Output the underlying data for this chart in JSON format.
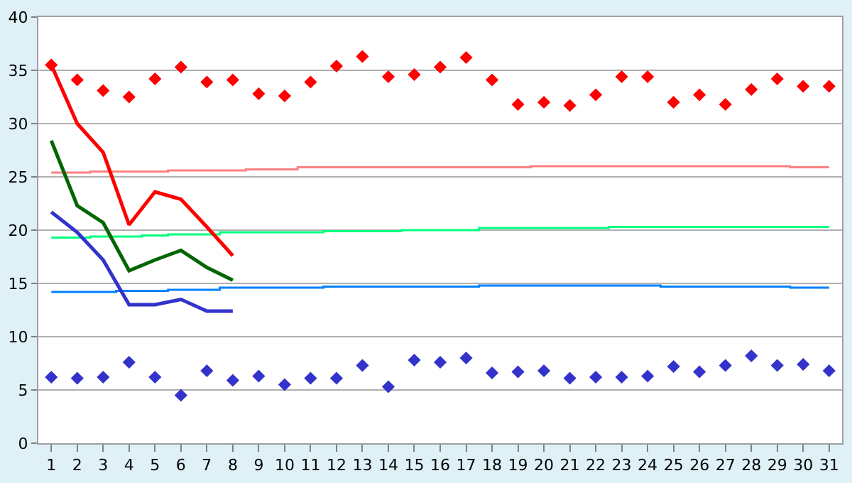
{
  "chart_data": {
    "type": "line",
    "x": [
      1,
      2,
      3,
      4,
      5,
      6,
      7,
      8,
      9,
      10,
      11,
      12,
      13,
      14,
      15,
      16,
      17,
      18,
      19,
      20,
      21,
      22,
      23,
      24,
      25,
      26,
      27,
      28,
      29,
      30,
      31
    ],
    "xlim": [
      0.5,
      31.5
    ],
    "xticks": [
      1,
      2,
      3,
      4,
      5,
      6,
      7,
      8,
      9,
      10,
      11,
      12,
      13,
      14,
      15,
      16,
      17,
      18,
      19,
      20,
      21,
      22,
      23,
      24,
      25,
      26,
      27,
      28,
      29,
      30,
      31
    ],
    "ylim": [
      0,
      40
    ],
    "yticks": [
      0,
      5,
      10,
      15,
      20,
      25,
      30,
      35,
      40
    ],
    "grid": "y",
    "series": [
      {
        "type": "step",
        "color": "#ff8080",
        "values": [
          25.4,
          25.4,
          25.5,
          25.5,
          25.5,
          25.6,
          25.6,
          25.6,
          25.7,
          25.7,
          25.9,
          25.9,
          25.9,
          25.9,
          25.9,
          25.9,
          25.9,
          25.9,
          25.9,
          26.0,
          26.0,
          26.0,
          26.0,
          26.0,
          26.0,
          26.0,
          26.0,
          26.0,
          26.0,
          25.9,
          25.9
        ]
      },
      {
        "type": "step",
        "color": "#00ff80",
        "values": [
          19.3,
          19.3,
          19.4,
          19.4,
          19.5,
          19.6,
          19.6,
          19.8,
          19.8,
          19.8,
          19.8,
          19.9,
          19.9,
          19.9,
          20.0,
          20.0,
          20.0,
          20.2,
          20.2,
          20.2,
          20.2,
          20.2,
          20.3,
          20.3,
          20.3,
          20.3,
          20.3,
          20.3,
          20.3,
          20.3,
          20.3
        ]
      },
      {
        "type": "step",
        "color": "#0080ff",
        "values": [
          14.2,
          14.2,
          14.2,
          14.3,
          14.3,
          14.4,
          14.4,
          14.6,
          14.6,
          14.6,
          14.6,
          14.7,
          14.7,
          14.7,
          14.7,
          14.7,
          14.7,
          14.8,
          14.8,
          14.8,
          14.8,
          14.8,
          14.8,
          14.8,
          14.7,
          14.7,
          14.7,
          14.7,
          14.7,
          14.6,
          14.6
        ]
      },
      {
        "color": "#ff0000",
        "x": [
          1,
          2,
          3,
          4,
          5,
          6,
          7,
          8
        ],
        "values": [
          35.5,
          30.0,
          27.3,
          20.5,
          23.6,
          22.9,
          20.3,
          17.6
        ]
      },
      {
        "color": "#006600",
        "x": [
          1,
          2,
          3,
          4,
          5,
          6,
          7,
          8
        ],
        "values": [
          28.4,
          22.3,
          20.7,
          16.2,
          17.2,
          18.1,
          16.5,
          15.3
        ]
      },
      {
        "color": "#3333cc",
        "x": [
          1,
          2,
          3,
          4,
          5,
          6,
          7,
          8
        ],
        "values": [
          21.7,
          19.8,
          17.2,
          13.0,
          13.0,
          13.5,
          12.4,
          12.4
        ]
      },
      {
        "type": "scatter",
        "marker": "diamond",
        "color": "#ff0000",
        "values": [
          35.5,
          34.1,
          33.1,
          32.5,
          34.2,
          35.3,
          33.9,
          34.1,
          32.8,
          32.6,
          33.9,
          35.4,
          36.3,
          34.4,
          34.6,
          35.3,
          36.2,
          34.1,
          31.8,
          32.0,
          31.7,
          32.7,
          34.4,
          34.4,
          32.0,
          32.7,
          31.8,
          33.2,
          34.2,
          33.5,
          33.5
        ]
      },
      {
        "type": "scatter",
        "marker": "diamond",
        "color": "#3333cc",
        "values": [
          6.2,
          6.1,
          6.2,
          7.6,
          6.2,
          4.5,
          6.8,
          5.9,
          6.3,
          5.5,
          6.1,
          6.1,
          7.3,
          5.3,
          7.8,
          7.6,
          8.0,
          6.6,
          6.7,
          6.8,
          6.1,
          6.2,
          6.2,
          6.3,
          7.2,
          6.7,
          7.3,
          8.2,
          7.3,
          7.4,
          6.8
        ]
      }
    ]
  }
}
